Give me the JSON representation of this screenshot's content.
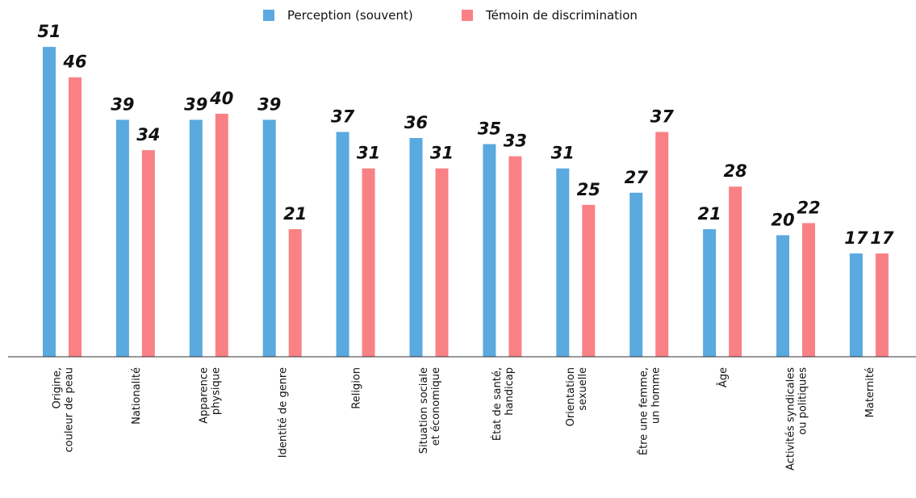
{
  "chart_data": {
    "type": "bar",
    "categories": [
      [
        "Origine,",
        "couleur de peau"
      ],
      [
        "Nationalité"
      ],
      [
        "Apparence",
        "physique"
      ],
      [
        "Identité de genre"
      ],
      [
        "Religion"
      ],
      [
        "Situation sociale",
        "et économique"
      ],
      [
        "État de santé,",
        "handicap"
      ],
      [
        "Orientation",
        "sexuelle"
      ],
      [
        "Être une femme,",
        "un homme"
      ],
      [
        "Âge"
      ],
      [
        "Activités syndicales",
        "ou politiques"
      ],
      [
        "Maternité"
      ]
    ],
    "series": [
      {
        "name": "Perception (souvent)",
        "color": "#5aa9df",
        "values": [
          51,
          39,
          39,
          39,
          37,
          36,
          35,
          31,
          27,
          21,
          20,
          17
        ]
      },
      {
        "name": "Témoin de discrimination",
        "color": "#f98185",
        "values": [
          46,
          34,
          40,
          21,
          31,
          31,
          33,
          25,
          37,
          28,
          22,
          17
        ]
      }
    ],
    "ylim": [
      0,
      55
    ],
    "legend": "top"
  }
}
